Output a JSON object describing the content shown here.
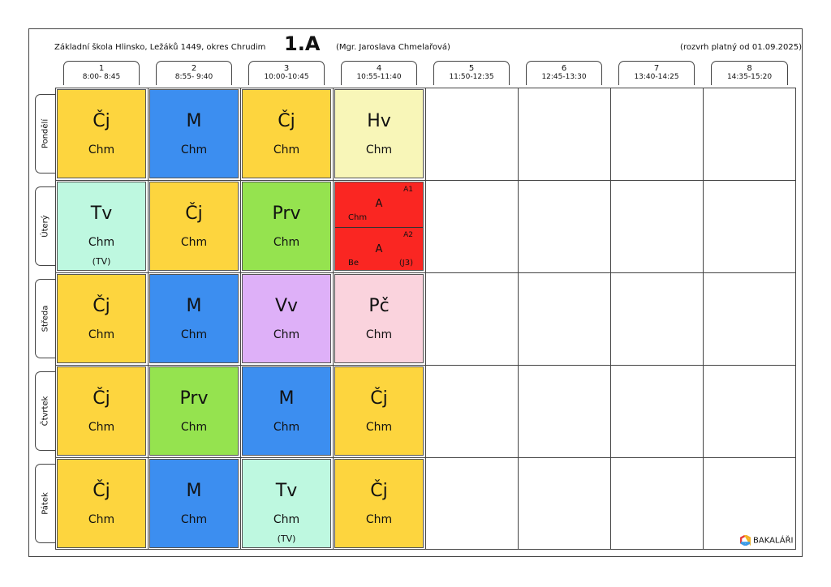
{
  "header": {
    "school": "Základní škola Hlinsko, Ležáků 1449, okres Chrudim",
    "class_name": "1.A",
    "teacher": "(Mgr. Jaroslava Chmelařová)",
    "valid_from": "(rozvrh platný od 01.09.2025)"
  },
  "periods": [
    {
      "n": "1",
      "time": "8:00- 8:45"
    },
    {
      "n": "2",
      "time": "8:55- 9:40"
    },
    {
      "n": "3",
      "time": "10:00-10:45"
    },
    {
      "n": "4",
      "time": "10:55-11:40"
    },
    {
      "n": "5",
      "time": "11:50-12:35"
    },
    {
      "n": "6",
      "time": "12:45-13:30"
    },
    {
      "n": "7",
      "time": "13:40-14:25"
    },
    {
      "n": "8",
      "time": "14:35-15:20"
    }
  ],
  "days": [
    "Pondělí",
    "Úterý",
    "Středa",
    "Čtvrtek",
    "Pátek"
  ],
  "lessons": [
    [
      {
        "subject": "Čj",
        "teacher": "Chm",
        "color": "#fdd53e"
      },
      {
        "subject": "M",
        "teacher": "Chm",
        "color": "#3c8ef0"
      },
      {
        "subject": "Čj",
        "teacher": "Chm",
        "color": "#fdd53e"
      },
      {
        "subject": "Hv",
        "teacher": "Chm",
        "color": "#f8f6b8"
      }
    ],
    [
      {
        "subject": "Tv",
        "teacher": "Chm",
        "room": "(TV)",
        "color": "#bef8e0"
      },
      {
        "subject": "Čj",
        "teacher": "Chm",
        "color": "#fdd53e"
      },
      {
        "subject": "Prv",
        "teacher": "Chm",
        "color": "#95e34f"
      },
      {
        "split": true,
        "color": "#fa2622",
        "parts": [
          {
            "group": "A1",
            "subject": "A",
            "teacher": "Chm",
            "room": ""
          },
          {
            "group": "A2",
            "subject": "A",
            "teacher": "Be",
            "room": "(J3)"
          }
        ]
      }
    ],
    [
      {
        "subject": "Čj",
        "teacher": "Chm",
        "color": "#fdd53e"
      },
      {
        "subject": "M",
        "teacher": "Chm",
        "color": "#3c8ef0"
      },
      {
        "subject": "Vv",
        "teacher": "Chm",
        "color": "#deb0f8"
      },
      {
        "subject": "Pč",
        "teacher": "Chm",
        "color": "#fad3dd"
      }
    ],
    [
      {
        "subject": "Čj",
        "teacher": "Chm",
        "color": "#fdd53e"
      },
      {
        "subject": "Prv",
        "teacher": "Chm",
        "color": "#95e34f"
      },
      {
        "subject": "M",
        "teacher": "Chm",
        "color": "#3c8ef0"
      },
      {
        "subject": "Čj",
        "teacher": "Chm",
        "color": "#fdd53e"
      }
    ],
    [
      {
        "subject": "Čj",
        "teacher": "Chm",
        "color": "#fdd53e"
      },
      {
        "subject": "M",
        "teacher": "Chm",
        "color": "#3c8ef0"
      },
      {
        "subject": "Tv",
        "teacher": "Chm",
        "room": "(TV)",
        "color": "#bef8e0"
      },
      {
        "subject": "Čj",
        "teacher": "Chm",
        "color": "#fdd53e"
      }
    ]
  ],
  "footer": {
    "brand": "BAKALÁŘI",
    "brand_icon": "bakalari-logo-icon"
  }
}
